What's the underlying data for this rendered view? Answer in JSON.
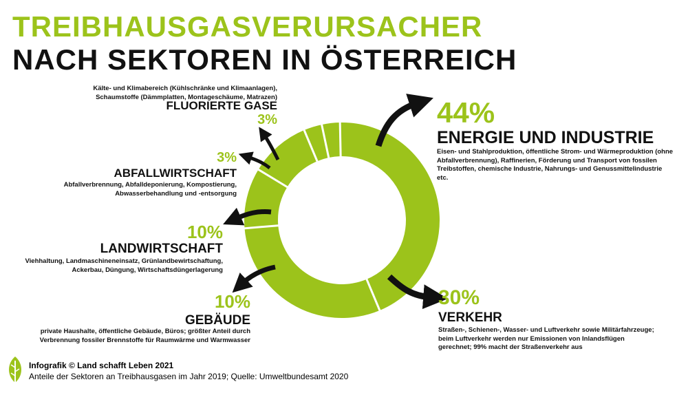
{
  "title_line1": "TREIBHAUSGASVERURSACHER",
  "title_line2": "NACH SEKTOREN IN ÖSTERREICH",
  "chart_data": {
    "type": "pie",
    "variant": "donut",
    "color": "#9cc31b",
    "arrow_color": "#111111",
    "categories": [
      "Energie und Industrie",
      "Verkehr",
      "Gebäude",
      "Landwirtschaft",
      "Abfallwirtschaft",
      "Fluorierte Gase"
    ],
    "values": [
      44,
      30,
      10,
      10,
      3,
      3
    ]
  },
  "sectors": {
    "energie": {
      "pct": "44%",
      "name": "ENERGIE UND INDUSTRIE",
      "desc": "Eisen- und Stahlproduktion, öffentliche Strom- und Wärmeproduktion (ohne Abfallverbrennung), Raffinerien, Förderung und Transport von fossilen Treibstoffen, chemische Industrie, Nahrungs- und Genussmittelindustrie etc."
    },
    "verkehr": {
      "pct": "30%",
      "name": "VERKEHR",
      "desc": "Straßen-, Schienen-, Wasser- und Luftverkehr sowie Militärfahrzeuge; beim Luftverkehr werden nur Emissionen von Inlandsflügen gerechnet; 99% macht der Straßenverkehr aus"
    },
    "gebaeude": {
      "pct": "10%",
      "name": "GEBÄUDE",
      "desc": "private Haushalte, öffentliche Gebäude, Büros; größter Anteil durch Verbrennung fossiler Brennstoffe für Raumwärme und Warmwasser"
    },
    "landwirtschaft": {
      "pct": "10%",
      "name": "LANDWIRTSCHAFT",
      "desc": "Viehhaltung, Landmaschineneinsatz, Grünlandbewirtschaftung, Ackerbau, Düngung, Wirtschaftsdüngerlagerung"
    },
    "abfall": {
      "pct": "3%",
      "name": "ABFALLWIRTSCHAFT",
      "desc": "Abfallverbrennung, Abfalldeponierung, Kompostierung, Abwasserbehandlung und -entsorgung"
    },
    "gase": {
      "pct": "3%",
      "name": "FLUORIERTE GASE",
      "desc": "Kälte- und Klimabereich (Kühlschränke und Klimaanlagen), Schaumstoffe (Dämmplatten, Montageschäume, Matrazen)"
    }
  },
  "footer": {
    "credit": "Infografik © Land schafft Leben 2021",
    "source": "Anteile der Sektoren an Treibhausgasen im Jahr 2019; Quelle: Umweltbundesamt 2020"
  }
}
